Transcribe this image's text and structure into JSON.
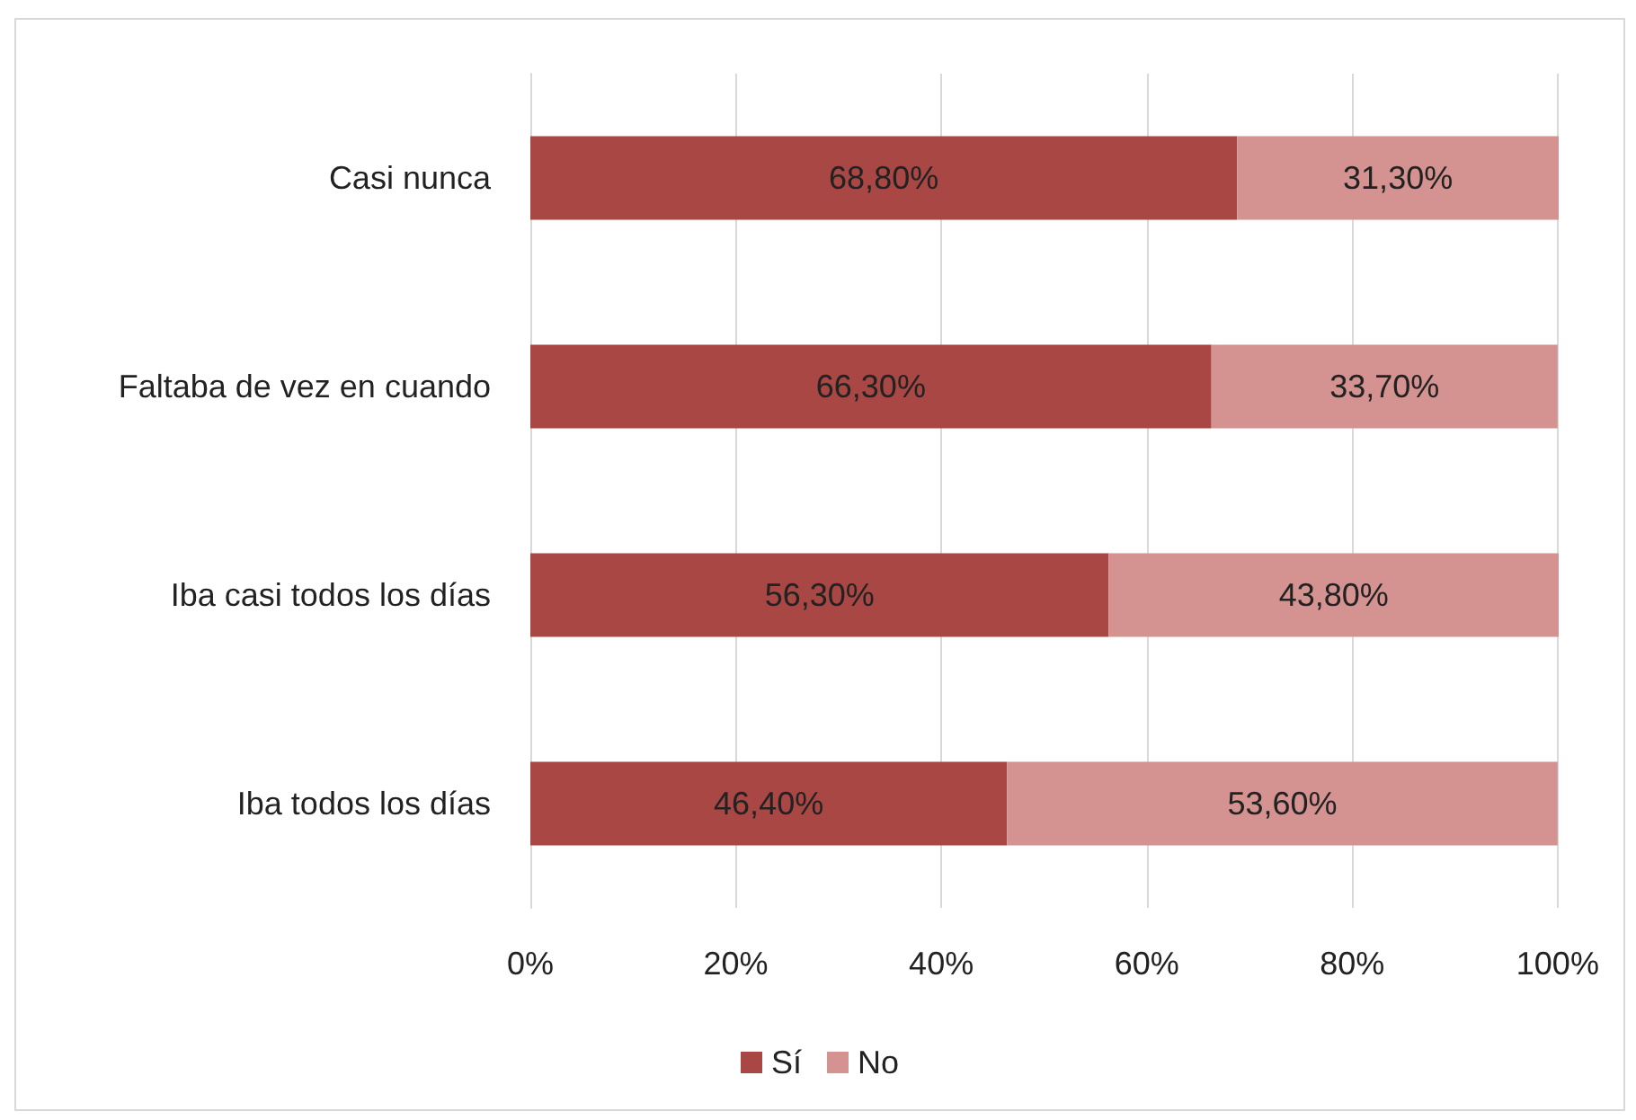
{
  "chart_data": {
    "type": "bar",
    "orientation": "horizontal",
    "stacked": true,
    "categories": [
      "Casi nunca",
      "Faltaba de vez en cuando",
      "Iba casi todos los días",
      "Iba todos los días"
    ],
    "series": [
      {
        "name": "Sí",
        "color": "#a94744",
        "values": [
          68.8,
          66.3,
          56.3,
          46.4
        ],
        "value_labels": [
          "68,80%",
          "66,30%",
          "56,30%",
          "46,40%"
        ]
      },
      {
        "name": "No",
        "color": "#d49391",
        "values": [
          31.3,
          33.7,
          43.8,
          53.6
        ],
        "value_labels": [
          "31,30%",
          "33,70%",
          "43,80%",
          "53,60%"
        ]
      }
    ],
    "xlim": [
      0,
      100.1
    ],
    "xticks": [
      {
        "value": 0,
        "label": "0%"
      },
      {
        "value": 20,
        "label": "20%"
      },
      {
        "value": 40,
        "label": "40%"
      },
      {
        "value": 60,
        "label": "60%"
      },
      {
        "value": 80,
        "label": "80%"
      },
      {
        "value": 100,
        "label": "100%"
      }
    ],
    "grid": "x",
    "legend": "bottom"
  }
}
